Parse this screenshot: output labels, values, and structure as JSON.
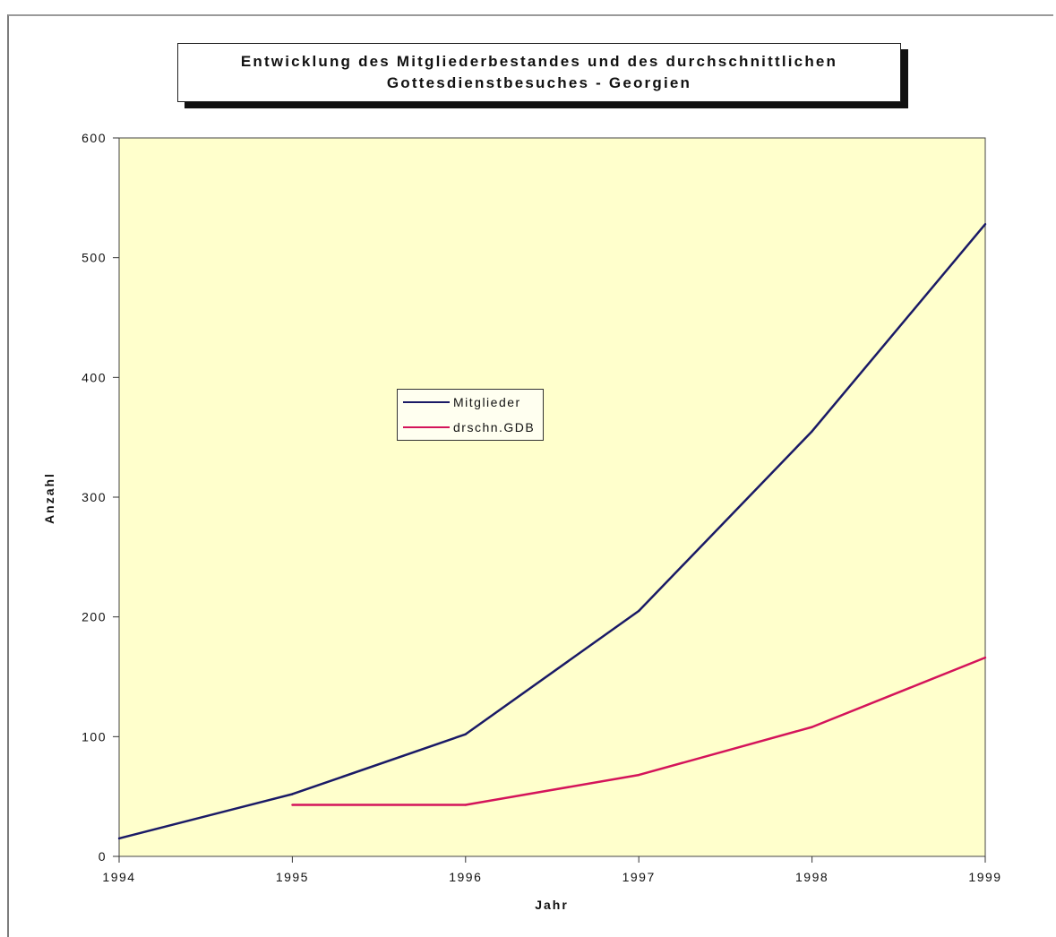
{
  "chart_data": {
    "type": "line",
    "title_lines": [
      "Entwicklung des Mitgliederbestandes und des durchschnittlichen",
      "Gottesdienstbesuches - Georgien"
    ],
    "xlabel": "Jahr",
    "ylabel": "Anzahl",
    "x": [
      1994,
      1995,
      1996,
      1997,
      1998,
      1999
    ],
    "x_tick_labels": [
      "1994",
      "1995",
      "1996",
      "1997",
      "1998",
      "1999"
    ],
    "ylim": [
      0,
      600
    ],
    "y_ticks": [
      0,
      100,
      200,
      300,
      400,
      500,
      600
    ],
    "y_tick_labels": [
      "0",
      "100",
      "200",
      "300",
      "400",
      "500",
      "600"
    ],
    "grid": false,
    "plot_background": "#ffffcc",
    "legend_position": "center",
    "series": [
      {
        "name": "Mitglieder",
        "color": "#1a1a66",
        "values": [
          15,
          52,
          102,
          205,
          355,
          528
        ]
      },
      {
        "name": "drschn.GDB",
        "color": "#d4145a",
        "values": [
          null,
          43,
          43,
          68,
          108,
          166
        ]
      }
    ]
  }
}
